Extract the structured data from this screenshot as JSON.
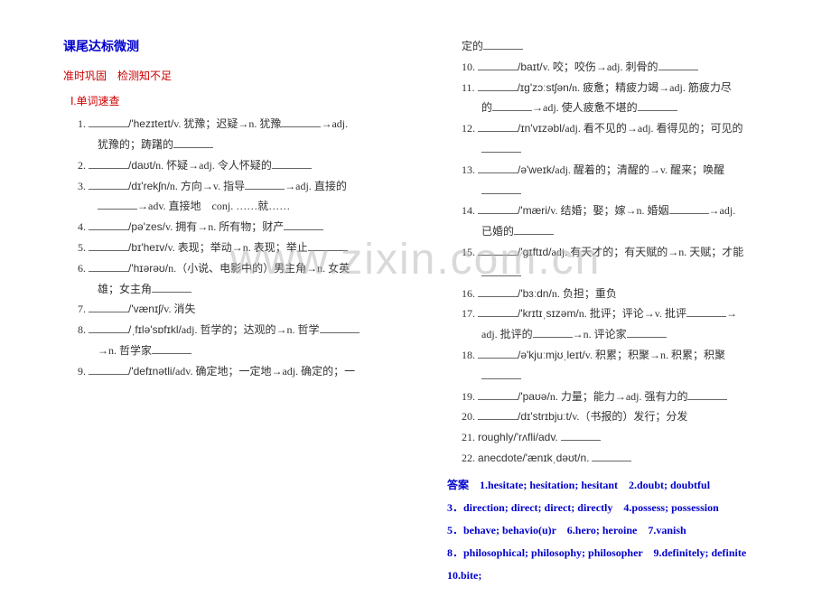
{
  "title": "课尾达标微测",
  "subtitle": "准时巩固　检测知不足",
  "section": "Ⅰ.单词速查",
  "watermark": "www.zixin.com.cn",
  "left_items": [
    {
      "num": "1.",
      "pre": "",
      "ipa": "/'hezɪteɪt/",
      "body": "v. 犹豫；迟疑→n. 犹豫",
      "tail": "→adj.",
      "sub": "犹豫的；踌躇的"
    },
    {
      "num": "2.",
      "pre": "",
      "ipa": "/daʊt/",
      "body": "n. 怀疑→adj. 令人怀疑的",
      "tail": ""
    },
    {
      "num": "3.",
      "pre": "",
      "ipa": "/dɪ'rekʃn/",
      "body": "n. 方向→v. 指导",
      "tail": "→adj. 直接的",
      "sub2": "→adv. 直接地　conj. ……就……"
    },
    {
      "num": "4.",
      "pre": "",
      "ipa": "/pə'zes/",
      "body": "v. 拥有→n. 所有物；财产",
      "tail": ""
    },
    {
      "num": "5.",
      "pre": "",
      "ipa": "/bɪ'heɪv/",
      "body": "v. 表现；举动→n. 表现；举止",
      "tail": ""
    },
    {
      "num": "6.",
      "pre": "",
      "ipa": "/'hɪərəʊ/",
      "body": "n.（小说、电影中的）男主角→n. 女英",
      "sub": "雄；女主角"
    },
    {
      "num": "7.",
      "pre": "",
      "ipa": "/'vænɪʃ/",
      "body": "v. 消失"
    },
    {
      "num": "8.",
      "pre": "",
      "ipa": "/ˌfɪlə'sɒfɪkl/",
      "body": "adj. 哲学的；达观的→n. 哲学",
      "sub": "→n. 哲学家"
    },
    {
      "num": "9.",
      "pre": "",
      "ipa": "/'defɪnətli/",
      "body": "adv. 确定地；一定地→adj. 确定的；一"
    }
  ],
  "right_items": [
    {
      "pre": "定的",
      "blank_only": true
    },
    {
      "num": "10.",
      "ipa": "/baɪt/",
      "body": "v. 咬；咬伤→adj. 刺骨的"
    },
    {
      "num": "11.",
      "ipa": "/ɪɡ'zɔːstʃən/",
      "body": "n. 疲惫；精疲力竭→adj. 筋疲力尽",
      "sub": "的",
      "tail2": "→adj. 使人疲惫不堪的"
    },
    {
      "num": "12.",
      "ipa": "/ɪn'vɪzəbl/",
      "body": "adj. 看不见的→adj. 看得见的；可见的"
    },
    {
      "num": "13.",
      "ipa": "/ə'weɪk/",
      "body": "adj. 醒着的；清醒的→v. 醒来；唤醒"
    },
    {
      "num": "14.",
      "ipa": "/'mæri/",
      "body": "v. 结婚；娶；嫁→n. 婚姻",
      "tail": "→adj.",
      "sub": "已婚的"
    },
    {
      "num": "15.",
      "ipa": "/'ɡɪftɪd/",
      "body": "adj. 有天才的；有天赋的→n. 天赋；才能"
    },
    {
      "num": "16.",
      "ipa": "/'bɜːdn/",
      "body": "n. 负担；重负"
    },
    {
      "num": "17.",
      "ipa": "/'krɪtɪˌsɪzəm/",
      "body": "n. 批评；评论→v. 批评",
      "tail": "→",
      "sub": "adj. 批评的",
      "tail2": "→n. 评论家"
    },
    {
      "num": "18.",
      "ipa": "/ə'kjuːmjʊˌleɪt/",
      "body": "v. 积累；积聚→n. 积累；积聚"
    },
    {
      "num": "19.",
      "ipa": "/'paʊə/",
      "body": "n. 力量；能力→adj. 强有力的"
    },
    {
      "num": "20.",
      "ipa": "/dɪ'strɪbjuːt/",
      "body": "v.（书报的）发行；分发"
    },
    {
      "num": "21.",
      "text": "roughly/'rʌfli/adv."
    },
    {
      "num": "22.",
      "text": "anecdote/'ænɪkˌdəʊt/n."
    }
  ],
  "answers": [
    "答案　1.hesitate; hesitation; hesitant　2.doubt; doubtful",
    "3．direction; direct; direct; directly　4.possess; possession",
    "5．behave; behavio(u)r　6.hero; heroine　7.vanish",
    "8．philosophical; philosophy; philosopher　9.definitely; definite　10.bite;"
  ]
}
